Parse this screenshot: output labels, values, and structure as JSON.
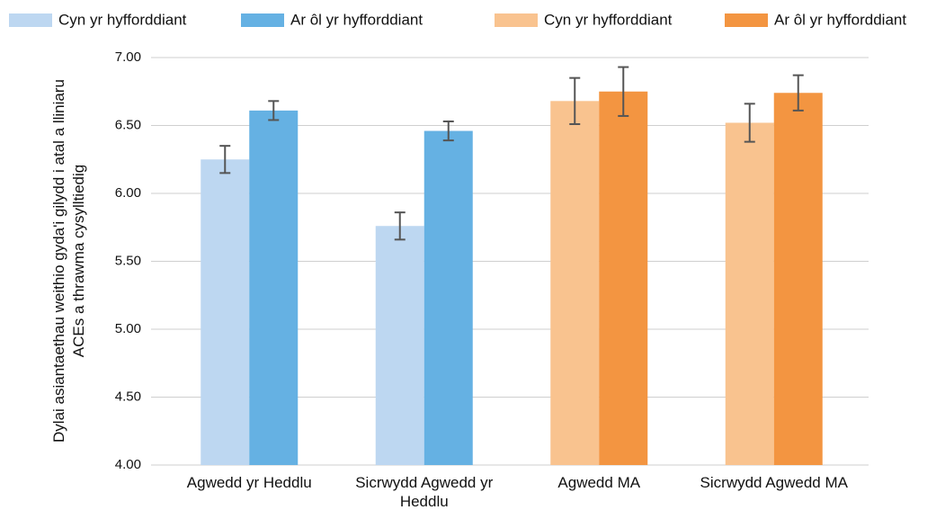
{
  "chart_data": {
    "type": "bar",
    "y_label": "Dylai asiantaethau weithio gyda'i gilydd i atal a lliniaru ACEs a thrawma cysylltiedig",
    "categories": [
      "Agwedd yr Heddlu",
      "Sicrwydd Agwedd yr Heddlu",
      "Agwedd MA",
      "Sicrwydd Agwedd MA"
    ],
    "series": [
      {
        "name": "Cyn yr hyfforddiant",
        "color": "#bdd7f1",
        "values": [
          6.25,
          5.76,
          null,
          null
        ],
        "errors": [
          0.1,
          0.1,
          null,
          null
        ]
      },
      {
        "name": "Ar ôl yr hyfforddiant",
        "color": "#65b1e3",
        "values": [
          6.61,
          6.46,
          null,
          null
        ],
        "errors": [
          0.07,
          0.07,
          null,
          null
        ]
      },
      {
        "name": "Cyn yr hyfforddiant",
        "color": "#f9c38f",
        "values": [
          null,
          null,
          6.68,
          6.52
        ],
        "errors": [
          null,
          null,
          0.17,
          0.14
        ]
      },
      {
        "name": "Ar ôl yr hyfforddiant",
        "color": "#f39541",
        "values": [
          null,
          null,
          6.75,
          6.74
        ],
        "errors": [
          null,
          null,
          0.18,
          0.13
        ]
      }
    ],
    "ylim": [
      4,
      7
    ],
    "yticks": [
      {
        "value": 4,
        "label": "4.00"
      },
      {
        "value": 4.5,
        "label": "4.50"
      },
      {
        "value": 5,
        "label": "5.00"
      },
      {
        "value": 5.5,
        "label": "5.50"
      },
      {
        "value": 6,
        "label": "6.00"
      },
      {
        "value": 6.5,
        "label": "6.50"
      },
      {
        "value": 7,
        "label": "7.00"
      }
    ],
    "grid": true
  }
}
